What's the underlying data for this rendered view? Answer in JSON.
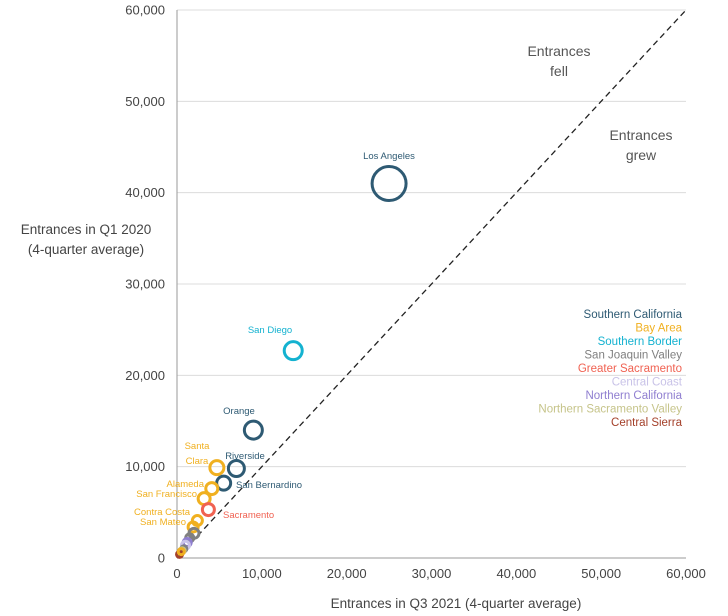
{
  "chart_data": {
    "type": "scatter",
    "title": "",
    "xlabel": "Entrances in Q3 2021 (4-quarter average)",
    "ylabel_lines": [
      "Entrances in Q1 2020",
      "(4-quarter average)"
    ],
    "xlim": [
      0,
      60000
    ],
    "ylim": [
      0,
      60000
    ],
    "x_ticks": [
      0,
      10000,
      20000,
      30000,
      40000,
      50000,
      60000
    ],
    "x_tick_labels": [
      "0",
      "10,000",
      "20,000",
      "30,000",
      "40,000",
      "50,000",
      "60,000"
    ],
    "y_ticks": [
      0,
      10000,
      20000,
      30000,
      40000,
      50000,
      60000
    ],
    "y_tick_labels": [
      "0",
      "10,000",
      "20,000",
      "30,000",
      "40,000",
      "50,000",
      "60,000"
    ],
    "grid": "horizontal",
    "reference_line": "y = x (dashed)",
    "annotations": {
      "fell": [
        "Entrances",
        "fell"
      ],
      "grew": [
        "Entrances",
        "grew"
      ]
    },
    "legend_position": "right",
    "series": [
      {
        "name": "Southern California",
        "color": "#2e5a73"
      },
      {
        "name": "Bay Area",
        "color": "#f0b020"
      },
      {
        "name": "Southern Border",
        "color": "#14b2d0"
      },
      {
        "name": "San Joaquin Valley",
        "color": "#808080"
      },
      {
        "name": "Greater Sacramento",
        "color": "#f06252"
      },
      {
        "name": "Central Coast",
        "color": "#c9c3e8"
      },
      {
        "name": "Northern California",
        "color": "#8f7ed0"
      },
      {
        "name": "Northern Sacramento Valley",
        "color": "#c6c48a"
      },
      {
        "name": "Central Sierra",
        "color": "#a4402a"
      }
    ],
    "points": [
      {
        "label": "Los Angeles",
        "region": "Southern California",
        "x": 25000,
        "y": 41000,
        "r": 17
      },
      {
        "label": "San Diego",
        "region": "Southern Border",
        "x": 13700,
        "y": 22700,
        "r": 9
      },
      {
        "label": "Orange",
        "region": "Southern California",
        "x": 9000,
        "y": 14000,
        "r": 9
      },
      {
        "label": "Riverside",
        "region": "Southern California",
        "x": 7000,
        "y": 9800,
        "r": 8
      },
      {
        "label": "San Bernardino",
        "region": "Southern California",
        "x": 5500,
        "y": 8200,
        "r": 7
      },
      {
        "label": "Santa Clara",
        "region": "Bay Area",
        "x": 4700,
        "y": 9900,
        "r": 7
      },
      {
        "label": "Alameda",
        "region": "Bay Area",
        "x": 4100,
        "y": 7600,
        "r": 6
      },
      {
        "label": "San Francisco",
        "region": "Bay Area",
        "x": 3200,
        "y": 6500,
        "r": 6
      },
      {
        "label": "Sacramento",
        "region": "Greater Sacramento",
        "x": 3700,
        "y": 5300,
        "r": 6
      },
      {
        "label": "Contra Costa",
        "region": "Bay Area",
        "x": 2400,
        "y": 4100,
        "r": 5
      },
      {
        "label": "San Mateo",
        "region": "Bay Area",
        "x": 1900,
        "y": 3400,
        "r": 5
      },
      {
        "label": "",
        "region": "San Joaquin Valley",
        "x": 2000,
        "y": 2700,
        "r": 5
      },
      {
        "label": "",
        "region": "San Joaquin Valley",
        "x": 1500,
        "y": 2200,
        "r": 4
      },
      {
        "label": "",
        "region": "Northern California",
        "x": 1200,
        "y": 1700,
        "r": 4
      },
      {
        "label": "",
        "region": "Central Coast",
        "x": 1000,
        "y": 1400,
        "r": 4
      },
      {
        "label": "",
        "region": "San Joaquin Valley",
        "x": 800,
        "y": 1000,
        "r": 3
      },
      {
        "label": "",
        "region": "Northern Sacramento Valley",
        "x": 600,
        "y": 800,
        "r": 3
      },
      {
        "label": "",
        "region": "Central Sierra",
        "x": 300,
        "y": 400,
        "r": 3
      },
      {
        "label": "",
        "region": "Bay Area",
        "x": 500,
        "y": 700,
        "r": 3
      }
    ]
  }
}
